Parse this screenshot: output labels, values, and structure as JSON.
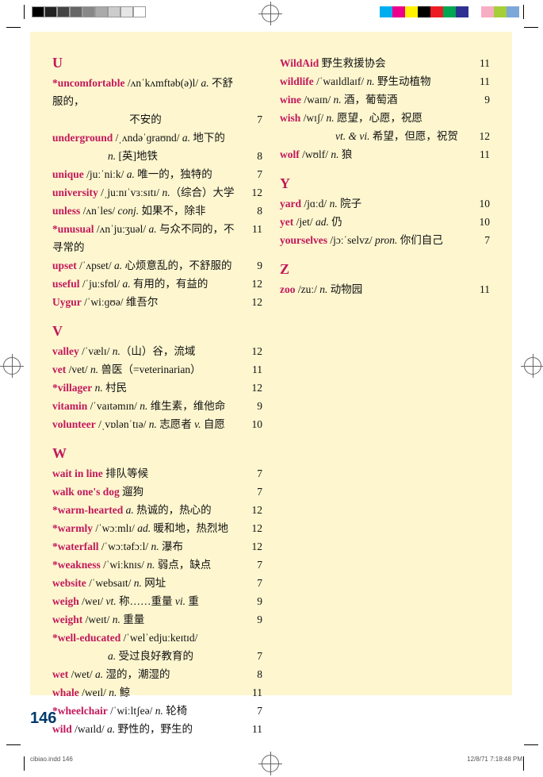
{
  "page_number": "146",
  "footer_left": "cibiao.indd   146",
  "footer_right": "12/8/71   7:18:48 PM",
  "colors": {
    "page_bg": "#fdf6cf",
    "headword": "#c2185b",
    "text": "#111111",
    "page_num": "#003a6b"
  },
  "grayscale_bar": [
    "#000000",
    "#222222",
    "#444444",
    "#666666",
    "#888888",
    "#aaaaaa",
    "#cccccc",
    "#e6e6e6",
    "#ffffff"
  ],
  "color_bar": [
    "#00aeef",
    "#ec008c",
    "#fff200",
    "#000000",
    "#ed1c24",
    "#00a651",
    "#2e3192",
    "#ffffff",
    "#f7adc3",
    "#a6ce39",
    "#7da7d9"
  ],
  "sections_left": [
    {
      "letter": "U",
      "entries": [
        {
          "hw": "*uncomfortable",
          "rest": " /ʌnˈkʌmftəb(ə)l/ ",
          "ital": "a.",
          "rest2": " 不舒服的，",
          "cont": "不安的",
          "num": "7"
        },
        {
          "hw": "underground",
          "rest": " /ˌʌndəˈɡraʊnd/ ",
          "ital": "a.",
          "rest2": " 地下的",
          "num": ""
        },
        {
          "hw": "",
          "rest": "",
          "ital": "n.",
          "rest2": " [英]地铁",
          "cont_indent": true,
          "num": "8"
        },
        {
          "hw": "unique",
          "rest": " /juːˈniːk/ ",
          "ital": "a.",
          "rest2": " 唯一的，独特的",
          "num": "7"
        },
        {
          "hw": "university",
          "rest": " /ˌjuːnɪˈvɜːsɪtɪ/ ",
          "ital": "n.",
          "rest2": "（综合）大学",
          "num": "12"
        },
        {
          "hw": "unless",
          "rest": " /ʌnˈles/ ",
          "ital": "conj.",
          "rest2": " 如果不，除非",
          "num": "8"
        },
        {
          "hw": "*unusual",
          "rest": " /ʌnˈjuːʒuəl/ ",
          "ital": "a.",
          "rest2": " 与众不同的，不寻常的",
          "num": "11"
        },
        {
          "hw": "upset",
          "rest": " /ˈʌpset/ ",
          "ital": "a.",
          "rest2": " 心烦意乱的，不舒服的",
          "num": "9"
        },
        {
          "hw": "useful",
          "rest": " /ˈjuːsfʊl/ ",
          "ital": "a.",
          "rest2": " 有用的，有益的",
          "num": "12"
        },
        {
          "hw": "Uygur",
          "rest": " /ˈwiːɡʊə/ 维吾尔",
          "ital": "",
          "rest2": "",
          "num": "12"
        }
      ]
    },
    {
      "letter": "V",
      "entries": [
        {
          "hw": "valley",
          "rest": " /ˈvælɪ/ ",
          "ital": "n.",
          "rest2": "（山）谷，流域",
          "num": "12"
        },
        {
          "hw": "vet",
          "rest": " /vet/ ",
          "ital": "n.",
          "rest2": " 兽医（=veterinarian）",
          "num": "11"
        },
        {
          "hw": "*villager",
          "rest": " ",
          "ital": "n.",
          "rest2": " 村民",
          "num": "12"
        },
        {
          "hw": "vitamin",
          "rest": " /ˈvaɪtəmɪn/ ",
          "ital": "n.",
          "rest2": " 维生素，维他命",
          "num": "9"
        },
        {
          "hw": "volunteer",
          "rest": " /ˌvɒlənˈtɪə/ ",
          "ital": "n.",
          "rest2": " 志愿者 ",
          "ital2": "v.",
          "rest3": " 自愿",
          "num": "10"
        }
      ]
    },
    {
      "letter": "W",
      "entries": [
        {
          "hw": "wait in line",
          "rest": " 排队等候",
          "ital": "",
          "rest2": "",
          "num": "7"
        },
        {
          "hw": "walk one's dog",
          "rest": " 遛狗",
          "ital": "",
          "rest2": "",
          "num": "7"
        },
        {
          "hw": "*warm-hearted",
          "rest": "  ",
          "ital": "a.",
          "rest2": " 热诚的，热心的",
          "num": "12"
        },
        {
          "hw": "*warmly",
          "rest": " /ˈwɔːmlɪ/ ",
          "ital": "ad.",
          "rest2": " 暖和地，热烈地",
          "num": "12"
        },
        {
          "hw": "*waterfall",
          "rest": " /ˈwɔːtəfɔːl/ ",
          "ital": "n.",
          "rest2": " 瀑布",
          "num": "12"
        },
        {
          "hw": "*weakness",
          "rest": " /ˈwiːknɪs/ ",
          "ital": "n.",
          "rest2": " 弱点，缺点",
          "num": "7"
        },
        {
          "hw": "website",
          "rest": " /ˈwebsaɪt/ ",
          "ital": "n.",
          "rest2": " 网址",
          "num": "7"
        },
        {
          "hw": "weigh",
          "rest": " /weɪ/ ",
          "ital": "vt.",
          "rest2": " 称……重量 ",
          "ital2": "vi.",
          "rest3": " 重",
          "num": "9"
        },
        {
          "hw": "weight",
          "rest": " /weɪt/ ",
          "ital": "n.",
          "rest2": " 重量",
          "num": "9"
        },
        {
          "hw": "*well-educated",
          "rest": " /ˈwelˈedjuːkeɪtɪd/",
          "ital": "",
          "rest2": "",
          "num": ""
        },
        {
          "hw": "",
          "rest": "",
          "ital": "a.",
          "rest2": " 受过良好教育的",
          "cont_indent": true,
          "num": "7"
        },
        {
          "hw": "wet",
          "rest": " /wet/ ",
          "ital": "a.",
          "rest2": " 湿的，潮湿的",
          "num": "8"
        },
        {
          "hw": "whale",
          "rest": " /weɪl/ ",
          "ital": "n.",
          "rest2": " 鲸",
          "num": "11"
        },
        {
          "hw": "*wheelchair",
          "rest": " /ˈwiːltʃeə/ ",
          "ital": "n.",
          "rest2": " 轮椅",
          "num": "7"
        },
        {
          "hw": "wild",
          "rest": " /waɪld/ ",
          "ital": "a.",
          "rest2": " 野性的，野生的",
          "num": "11"
        }
      ]
    }
  ],
  "sections_right": [
    {
      "letter": "",
      "entries": [
        {
          "hw": "WildAid",
          "rest": " 野生救援协会",
          "ital": "",
          "rest2": "",
          "num": "11"
        },
        {
          "hw": "wildlife",
          "rest": " /ˈwaɪldlaɪf/ ",
          "ital": "n.",
          "rest2": " 野生动植物",
          "num": "11"
        },
        {
          "hw": "wine",
          "rest": " /waɪn/ ",
          "ital": "n.",
          "rest2": " 酒，葡萄酒",
          "num": "9"
        },
        {
          "hw": "wish",
          "rest": " /wɪʃ/ ",
          "ital": "n.",
          "rest2": " 愿望，心愿，祝愿",
          "num": ""
        },
        {
          "hw": "",
          "rest": "",
          "ital": "vt. & vi.",
          "rest2": " 希望，但愿，祝贺",
          "cont_indent": true,
          "num": "12"
        },
        {
          "hw": "wolf",
          "rest": " /wʊlf/ ",
          "ital": "n.",
          "rest2": " 狼",
          "num": "11"
        }
      ]
    },
    {
      "letter": "Y",
      "entries": [
        {
          "hw": "yard",
          "rest": " /jɑːd/ ",
          "ital": "n.",
          "rest2": " 院子",
          "num": "10"
        },
        {
          "hw": "yet",
          "rest": " /jet/ ",
          "ital": "ad.",
          "rest2": " 仍",
          "num": "10"
        },
        {
          "hw": "yourselves",
          "rest": " /jɔːˈselvz/ ",
          "ital": "pron.",
          "rest2": " 你们自己",
          "num": "7"
        }
      ]
    },
    {
      "letter": "Z",
      "entries": [
        {
          "hw": "zoo",
          "rest": " /zuː/ ",
          "ital": "n.",
          "rest2": " 动物园",
          "num": "11"
        }
      ]
    }
  ]
}
